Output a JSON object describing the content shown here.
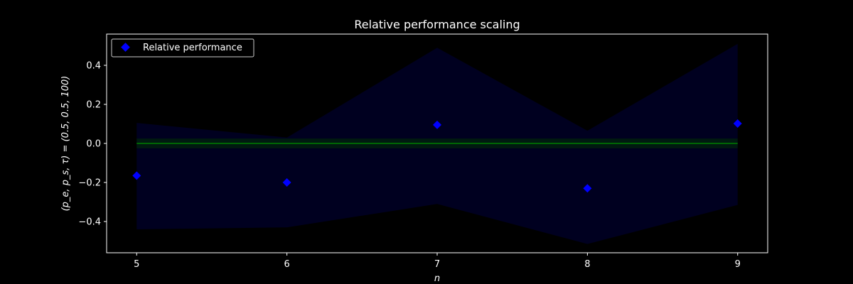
{
  "chart_data": {
    "type": "scatter",
    "title": "Relative performance scaling",
    "xlabel": "n",
    "ylabel": "(p_e, p_s, τ) = (0.5, 0.5, 100)",
    "xlim": [
      4.8,
      9.2
    ],
    "ylim": [
      -0.56,
      0.56
    ],
    "x_ticks": [
      5,
      6,
      7,
      8,
      9
    ],
    "y_ticks": [
      -0.4,
      -0.2,
      0.0,
      0.2,
      0.4
    ],
    "y_tick_labels": [
      "−0.4",
      "−0.2",
      "0.0",
      "0.2",
      "0.4"
    ],
    "series": [
      {
        "name": "Relative performance",
        "kind": "scatter",
        "marker": "diamond",
        "color": "#0000ff",
        "x": [
          5,
          6,
          7,
          8,
          9
        ],
        "y": [
          -0.165,
          -0.2,
          0.095,
          -0.23,
          0.102
        ]
      },
      {
        "kind": "line",
        "color": "#008000",
        "x": [
          5,
          9
        ],
        "y": [
          0.0,
          0.0
        ]
      }
    ],
    "bands": [
      {
        "color": "#000020",
        "x": [
          5,
          6,
          7,
          8,
          9
        ],
        "upper": [
          0.105,
          0.03,
          0.49,
          0.065,
          0.51
        ],
        "lower": [
          -0.44,
          -0.43,
          -0.31,
          -0.515,
          -0.315
        ]
      },
      {
        "color": "#001a10",
        "x": [
          5,
          9
        ],
        "upper": [
          0.025,
          0.025
        ],
        "lower": [
          -0.025,
          -0.025
        ]
      }
    ],
    "legend": {
      "placement": "top-left",
      "entries": [
        "Relative performance"
      ]
    },
    "grid": false,
    "background": "#000000",
    "axes_color": "#ffffff"
  }
}
